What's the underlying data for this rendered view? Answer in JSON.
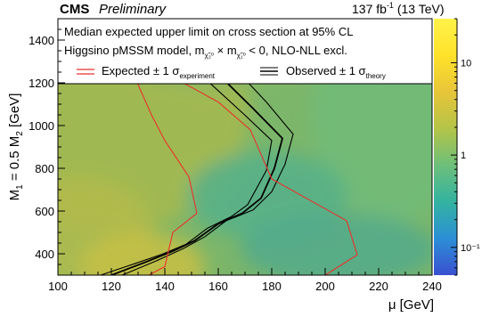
{
  "header": {
    "experiment": "CMS",
    "status": "Preliminary",
    "lumi": "137 fb",
    "lumi_sup": "-1",
    "energy": " (13 TeV)"
  },
  "legend": {
    "line1": "Median expected upper limit on cross section at 95% CL",
    "line2_prefix": "Higgsino pMSSM model, m",
    "line2_suffix": " < 0, NLO-NLL excl.",
    "expected_label": "Expected ± 1 σ",
    "expected_sub": "experiment",
    "observed_label": "Observed ± 1 σ",
    "observed_sub": "theory"
  },
  "chart_data": {
    "type": "heatmap",
    "xlabel": "μ [GeV]",
    "ylabel": "M1 = 0.5 M2 [GeV]",
    "xlim": [
      100,
      240
    ],
    "ylim": [
      300,
      1500
    ],
    "x_ticks": [
      100,
      120,
      140,
      160,
      180,
      200,
      220,
      240
    ],
    "y_ticks": [
      400,
      600,
      800,
      1000,
      1200,
      1400
    ],
    "z_scale": "log",
    "z_range": [
      0.05,
      30
    ],
    "z_ticks": [
      {
        "value": 0.1,
        "label": "10⁻¹"
      },
      {
        "value": 1,
        "label": "1"
      },
      {
        "value": 10,
        "label": "10"
      }
    ],
    "colormap": [
      "#3a50d0",
      "#2c8fd6",
      "#33b3a0",
      "#6dbf7a",
      "#b4c448",
      "#e8c538",
      "#ffe22a",
      "#fff24a"
    ],
    "grid": false,
    "series": [
      {
        "name": "Observed ± 1 σ",
        "color": "#000000",
        "central": [
          [
            120,
            300
          ],
          [
            133,
            362
          ],
          [
            143,
            412
          ],
          [
            151,
            460
          ],
          [
            160,
            540
          ],
          [
            169,
            590
          ],
          [
            176,
            660
          ],
          [
            181,
            800
          ],
          [
            184,
            940
          ],
          [
            173,
            1080
          ],
          [
            160,
            1240
          ]
        ],
        "minus": [
          [
            116,
            300
          ],
          [
            129,
            355
          ],
          [
            139,
            398
          ],
          [
            148,
            445
          ],
          [
            156,
            520
          ],
          [
            165,
            575
          ],
          [
            171,
            630
          ],
          [
            178,
            790
          ],
          [
            180,
            930
          ],
          [
            169,
            1060
          ],
          [
            155,
            1220
          ]
        ],
        "plus": [
          [
            124,
            300
          ],
          [
            137,
            368
          ],
          [
            147,
            425
          ],
          [
            155,
            480
          ],
          [
            163,
            555
          ],
          [
            173,
            605
          ],
          [
            180,
            690
          ],
          [
            185,
            820
          ],
          [
            188,
            960
          ],
          [
            178,
            1110
          ],
          [
            166,
            1270
          ]
        ]
      },
      {
        "name": "Expected ± 1 σ",
        "color": "#e8322d",
        "minus": [
          [
            134,
            300
          ],
          [
            140,
            340
          ],
          [
            143,
            500
          ],
          [
            152,
            590
          ],
          [
            149,
            760
          ],
          [
            140,
            930
          ],
          [
            135,
            1050
          ],
          [
            129,
            1220
          ],
          [
            123,
            1260
          ]
        ],
        "plus": [
          [
            200,
            300
          ],
          [
            212,
            395
          ],
          [
            208,
            555
          ],
          [
            180,
            750
          ],
          [
            172,
            980
          ],
          [
            160,
            1110
          ],
          [
            144,
            1220
          ],
          [
            135,
            1250
          ],
          [
            124,
            1250
          ]
        ]
      }
    ]
  }
}
